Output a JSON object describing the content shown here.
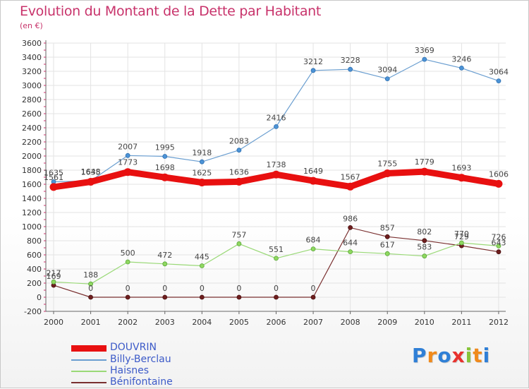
{
  "header": {
    "title": "Evolution du Montant de la Dette par Habitant",
    "subtitle": "(en €)"
  },
  "logo": {
    "text": "Proxiti",
    "letters": [
      {
        "ch": "P",
        "color": "#2f7fd6"
      },
      {
        "ch": "r",
        "color": "#f08a1c"
      },
      {
        "ch": "o",
        "color": "#2f7fd6"
      },
      {
        "ch": "x",
        "color": "#e8322e"
      },
      {
        "ch": "i",
        "color": "#88c43a"
      },
      {
        "ch": "t",
        "color": "#f08a1c"
      },
      {
        "ch": "i",
        "color": "#2f7fd6"
      }
    ]
  },
  "chart_data": {
    "type": "line",
    "title": "Evolution du Montant de la Dette par Habitant",
    "subtitle": "(en €)",
    "xlabel": "",
    "ylabel": "",
    "categories": [
      "2000",
      "2001",
      "2002",
      "2003",
      "2004",
      "2005",
      "2006",
      "2007",
      "2008",
      "2009",
      "2010",
      "2011",
      "2012"
    ],
    "ylim": [
      -200,
      3600
    ],
    "yticks": [
      -200,
      0,
      200,
      400,
      600,
      800,
      1000,
      1200,
      1400,
      1600,
      1800,
      2000,
      2200,
      2400,
      2600,
      2800,
      3000,
      3200,
      3400,
      3600
    ],
    "grid": true,
    "legend_position": "bottom-left",
    "series": [
      {
        "name": "DOUVRIN",
        "color": "#e81010",
        "width": 9,
        "values": [
          1561,
          1635,
          1773,
          1698,
          1625,
          1636,
          1738,
          1649,
          1567,
          1755,
          1779,
          1693,
          1606
        ]
      },
      {
        "name": "Billy-Berclau",
        "color": "#6a9ed0",
        "width": 1.2,
        "values": [
          1635,
          1648,
          2007,
          1995,
          1918,
          2083,
          2416,
          3212,
          3228,
          3094,
          3369,
          3246,
          3064
        ]
      },
      {
        "name": "Haisnes",
        "color": "#9ad977",
        "width": 1.2,
        "values": [
          217,
          188,
          500,
          472,
          445,
          757,
          551,
          684,
          644,
          617,
          583,
          770,
          726
        ]
      },
      {
        "name": "Bénifontaine",
        "color": "#7a3030",
        "width": 1.2,
        "values": [
          169,
          0,
          0,
          0,
          0,
          0,
          0,
          0,
          986,
          857,
          802,
          729,
          643
        ]
      }
    ],
    "label_rows": [
      {
        "series": 0,
        "labels": [
          "1561",
          "1635",
          "1773",
          "1698",
          "1625",
          "1636",
          "1738",
          "1649",
          "1567",
          "1755",
          "1779",
          "1693",
          "1606"
        ]
      },
      {
        "series": 1,
        "labels": [
          "1635",
          "1648",
          "2007",
          "1995",
          "1918",
          "2083",
          "2416",
          "3212",
          "3228",
          "3094",
          "3369",
          "3246",
          "3064"
        ]
      },
      {
        "series": 2,
        "labels": [
          "217",
          "188",
          "500",
          "472",
          "445",
          "757",
          "551",
          "684",
          "644",
          "617",
          "583",
          "770",
          "726"
        ]
      },
      {
        "series": 3,
        "labels": [
          "169",
          "0",
          "0",
          "0",
          "0",
          "0",
          "0",
          "0",
          "986",
          "857",
          "802",
          "729",
          "643"
        ]
      }
    ]
  }
}
